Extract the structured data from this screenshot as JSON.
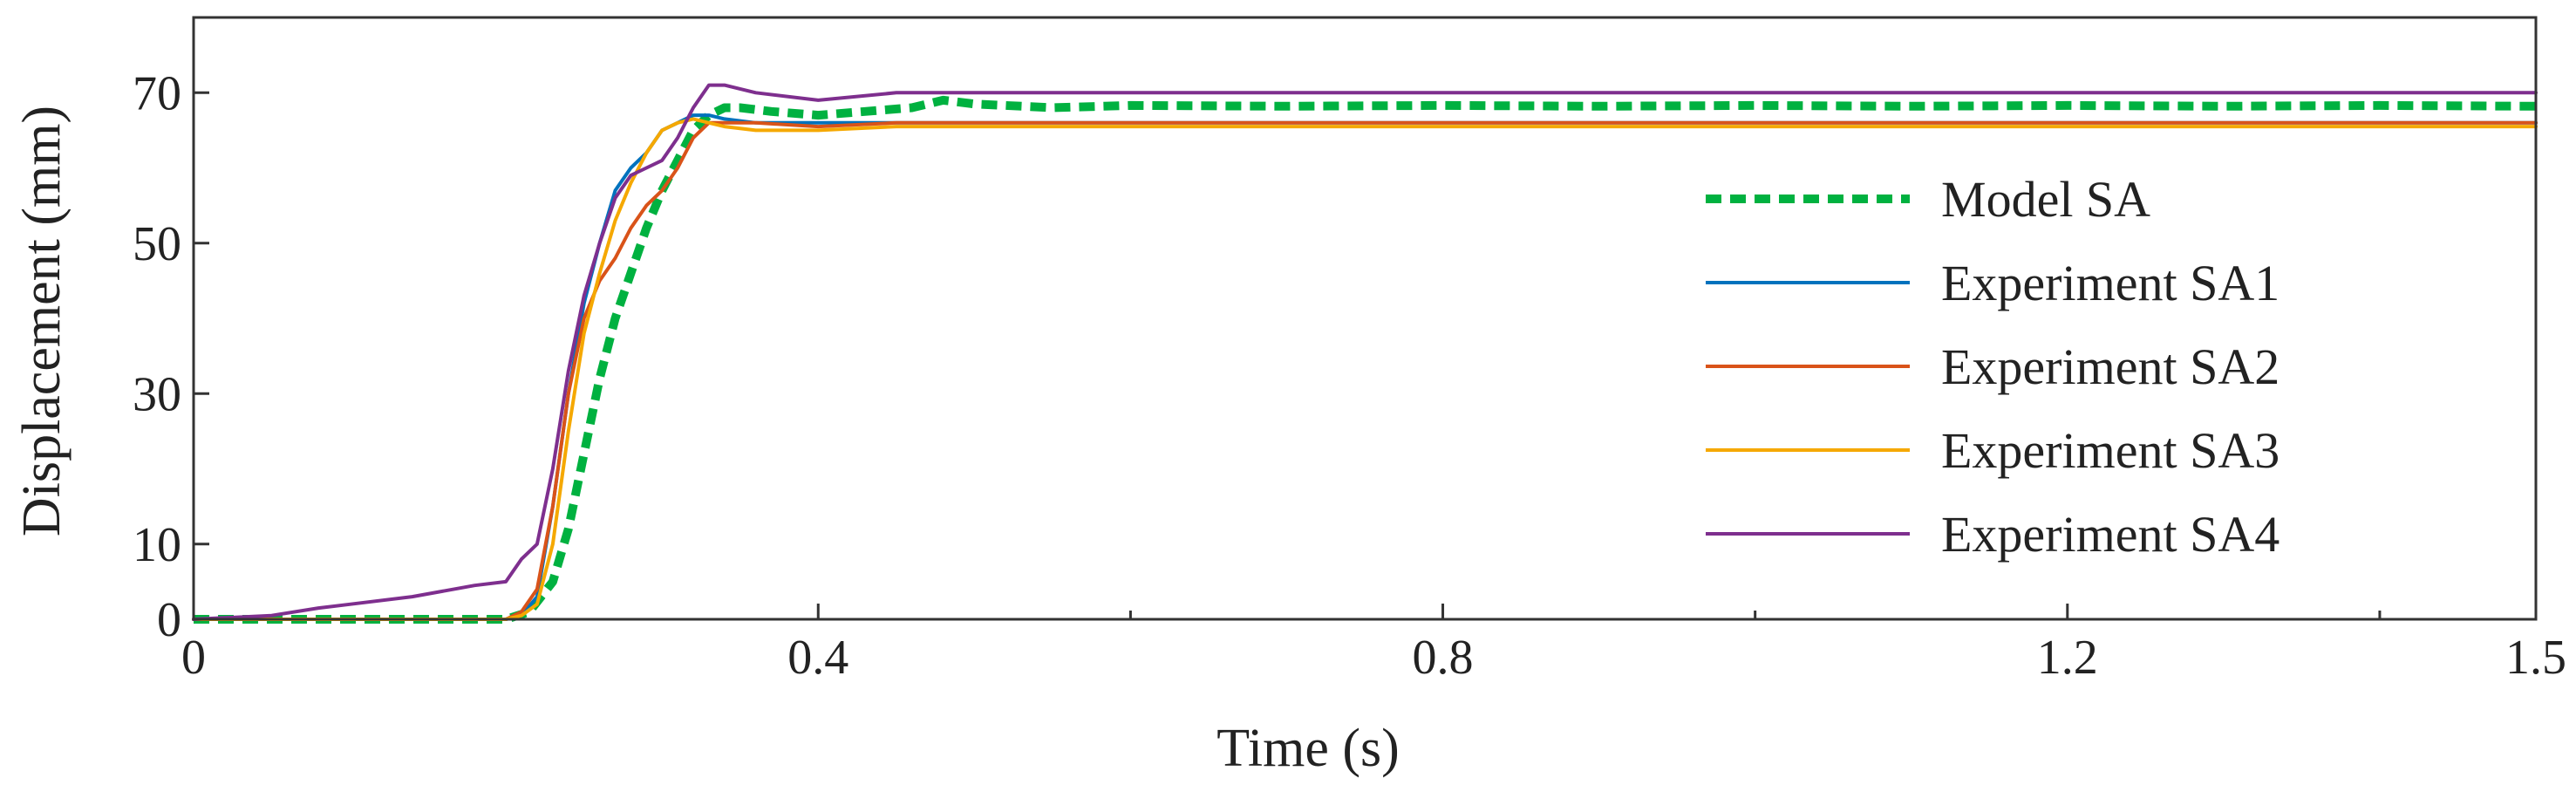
{
  "chart_data": {
    "type": "line",
    "title": "",
    "xlabel": "Time (s)",
    "ylabel": "Displacement (mm)",
    "xlim": [
      0,
      1.5
    ],
    "ylim": [
      0,
      80
    ],
    "xticks": [
      0,
      0.4,
      0.8,
      1.2,
      1.5
    ],
    "xtick_labels": [
      "0",
      "0.4",
      "0.8",
      "1.2",
      "1.5"
    ],
    "xticks_minor": [
      0.6,
      1.0,
      1.4
    ],
    "yticks": [
      0,
      10,
      30,
      50,
      70
    ],
    "ytick_labels": [
      "0",
      "10",
      "30",
      "50",
      "70"
    ],
    "grid": false,
    "legend_position": "right",
    "series": [
      {
        "name": "Model SA",
        "color": "#00b140",
        "dash": "dashed",
        "x": [
          0,
          0.1,
          0.2,
          0.215,
          0.23,
          0.24,
          0.25,
          0.26,
          0.27,
          0.28,
          0.29,
          0.3,
          0.31,
          0.32,
          0.33,
          0.34,
          0.35,
          0.37,
          0.4,
          0.43,
          0.46,
          0.48,
          0.5,
          0.55,
          0.6,
          0.7,
          0.8,
          0.9,
          1.0,
          1.1,
          1.2,
          1.3,
          1.4,
          1.5
        ],
        "y": [
          0,
          0,
          0,
          1,
          5,
          12,
          22,
          32,
          40,
          46,
          52,
          57,
          61,
          65,
          67,
          68,
          68,
          67.5,
          67,
          67.5,
          68,
          69,
          68.5,
          68,
          68.3,
          68.2,
          68.3,
          68.2,
          68.3,
          68.2,
          68.3,
          68.2,
          68.3,
          68.2
        ]
      },
      {
        "name": "Experiment SA1",
        "color": "#0072bd",
        "dash": "solid",
        "x": [
          0,
          0.1,
          0.2,
          0.21,
          0.22,
          0.23,
          0.24,
          0.25,
          0.26,
          0.27,
          0.28,
          0.29,
          0.3,
          0.31,
          0.32,
          0.33,
          0.34,
          0.36,
          0.4,
          0.45,
          0.5,
          0.6,
          0.8,
          1.0,
          1.2,
          1.4,
          1.5
        ],
        "y": [
          0,
          0,
          0,
          0.5,
          3,
          15,
          30,
          42,
          50,
          57,
          60,
          62,
          65,
          66,
          67,
          67,
          66.5,
          66,
          66,
          66,
          66,
          66,
          66,
          66,
          66,
          66,
          66
        ]
      },
      {
        "name": "Experiment SA2",
        "color": "#d95319",
        "dash": "solid",
        "x": [
          0,
          0.1,
          0.2,
          0.21,
          0.22,
          0.23,
          0.24,
          0.25,
          0.26,
          0.27,
          0.28,
          0.29,
          0.3,
          0.31,
          0.32,
          0.33,
          0.34,
          0.36,
          0.4,
          0.45,
          0.5,
          0.6,
          0.8,
          1.0,
          1.2,
          1.4,
          1.5
        ],
        "y": [
          0,
          0,
          0,
          1,
          4,
          15,
          30,
          40,
          45,
          48,
          52,
          55,
          57,
          60,
          64,
          66,
          66,
          66,
          65.5,
          66,
          66,
          66,
          66,
          66,
          66,
          66,
          66
        ]
      },
      {
        "name": "Experiment SA3",
        "color": "#f5a800",
        "dash": "solid",
        "x": [
          0,
          0.1,
          0.2,
          0.21,
          0.22,
          0.23,
          0.24,
          0.25,
          0.26,
          0.27,
          0.28,
          0.29,
          0.3,
          0.31,
          0.32,
          0.33,
          0.34,
          0.36,
          0.38,
          0.4,
          0.45,
          0.5,
          0.6,
          0.8,
          1.0,
          1.2,
          1.4,
          1.5
        ],
        "y": [
          0,
          0,
          0,
          0.5,
          2,
          10,
          25,
          38,
          46,
          53,
          58,
          62,
          65,
          66,
          66.5,
          66,
          65.5,
          65,
          65,
          65,
          65.5,
          65.5,
          65.5,
          65.5,
          65.5,
          65.5,
          65.5,
          65.5
        ]
      },
      {
        "name": "Experiment SA4",
        "color": "#7e2f8e",
        "dash": "solid",
        "x": [
          0,
          0.05,
          0.08,
          0.1,
          0.14,
          0.18,
          0.2,
          0.21,
          0.22,
          0.23,
          0.24,
          0.25,
          0.26,
          0.27,
          0.28,
          0.29,
          0.3,
          0.31,
          0.32,
          0.33,
          0.34,
          0.36,
          0.4,
          0.45,
          0.5,
          0.6,
          0.8,
          1.0,
          1.2,
          1.4,
          1.5
        ],
        "y": [
          0,
          0.5,
          1.5,
          2,
          3,
          4.5,
          5,
          8,
          10,
          20,
          33,
          43,
          50,
          56,
          59,
          60,
          61,
          64,
          68,
          71,
          71,
          70,
          69,
          70,
          70,
          70,
          70,
          70,
          70,
          70,
          70
        ]
      }
    ]
  }
}
